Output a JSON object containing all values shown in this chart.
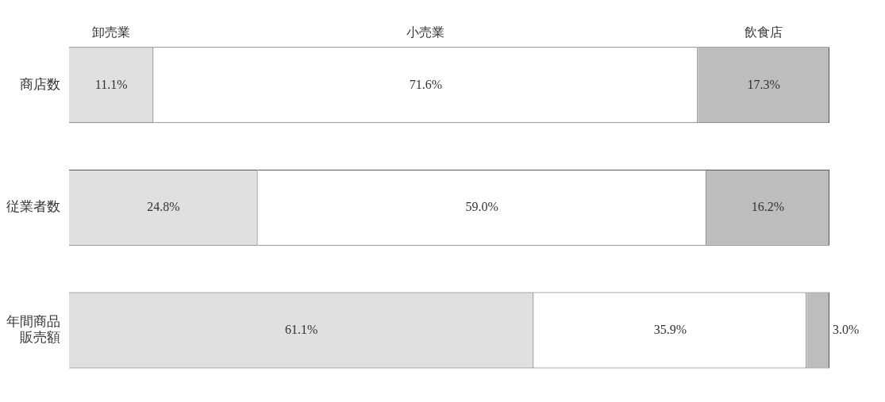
{
  "chart_data": {
    "type": "bar",
    "orientation": "horizontal",
    "stacked": true,
    "categories": [
      "商店数",
      "従業者数",
      "年間商品販売額"
    ],
    "series": [
      {
        "name": "卸売業",
        "color": "#e0e0e0",
        "values": [
          11.1,
          24.8,
          61.1
        ],
        "value_labels": [
          "11.1%",
          "24.8%",
          "61.1%"
        ]
      },
      {
        "name": "小売業",
        "color": "#ffffff",
        "values": [
          71.6,
          59.0,
          35.9
        ],
        "value_labels": [
          "71.6%",
          "59.0%",
          "35.9%"
        ]
      },
      {
        "name": "飲食店",
        "color": "#bdbdbd",
        "values": [
          17.3,
          16.2,
          3.0
        ],
        "value_labels": [
          "17.3%",
          "16.2%",
          "3.0%"
        ]
      }
    ],
    "xlim": [
      0,
      100
    ],
    "tick_labels": "y"
  }
}
